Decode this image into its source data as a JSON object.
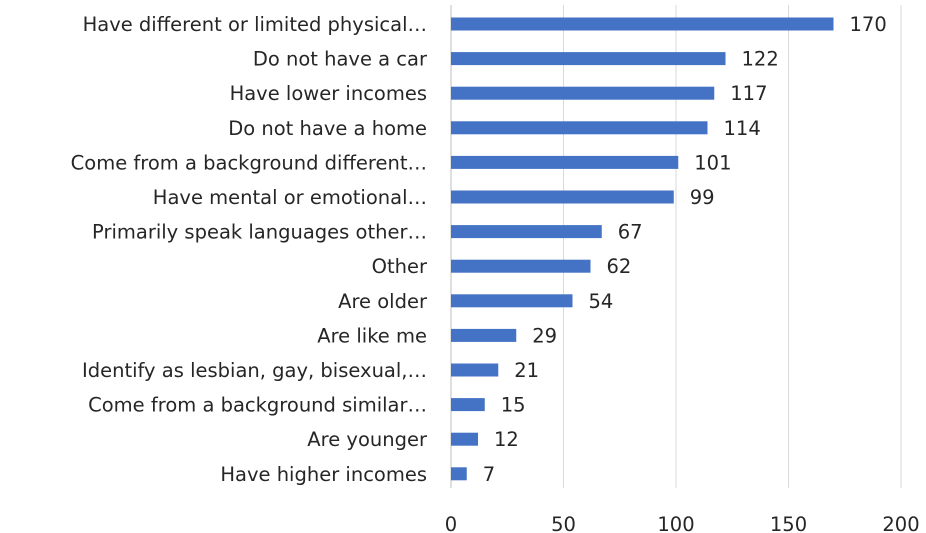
{
  "chart_data": {
    "type": "bar",
    "orientation": "horizontal",
    "title": "",
    "xlabel": "",
    "ylabel": "",
    "categories": [
      "Have different or limited physical…",
      "Do not have a car",
      "Have lower incomes",
      "Do not have a home",
      "Come from a background different…",
      "Have mental or emotional…",
      "Primarily speak languages other…",
      "Other",
      "Are older",
      "Are like me",
      "Identify as lesbian, gay, bisexual,…",
      "Come from a background similar…",
      "Are younger",
      "Have higher incomes"
    ],
    "values": [
      170,
      122,
      117,
      114,
      101,
      99,
      67,
      62,
      54,
      29,
      21,
      15,
      12,
      7
    ],
    "xlim": [
      0,
      200
    ],
    "xticks": [
      0,
      50,
      100,
      150,
      200
    ],
    "grid": true,
    "legend": "none",
    "bar_color": "#4472c4"
  }
}
